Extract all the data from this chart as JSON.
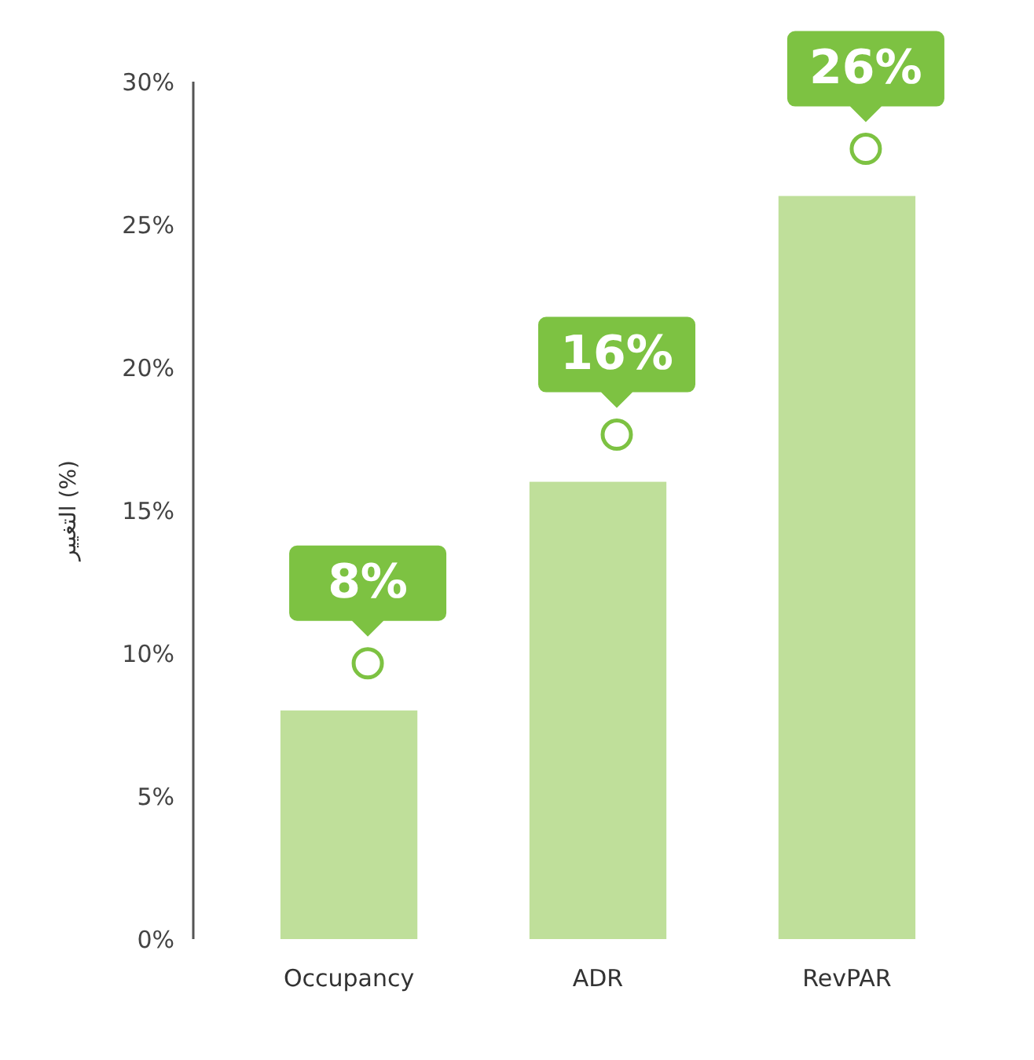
{
  "chart_data": {
    "type": "bar",
    "ylabel": "التغيير (%)",
    "categories": [
      "Occupancy",
      "ADR",
      "RevPAR"
    ],
    "values": [
      8,
      16,
      26
    ],
    "value_labels": [
      "8%",
      "16%",
      "26%"
    ],
    "color": "#bfdf9a",
    "ylim": [
      0,
      30
    ],
    "yticks": [
      {
        "value": 0,
        "label": "0%"
      },
      {
        "value": 5,
        "label": "5%"
      },
      {
        "value": 10,
        "label": "10%"
      },
      {
        "value": 15,
        "label": "15%"
      },
      {
        "value": 20,
        "label": "20%"
      },
      {
        "value": 25,
        "label": "25%"
      },
      {
        "value": 30,
        "label": "30%"
      }
    ],
    "grid": false
  }
}
